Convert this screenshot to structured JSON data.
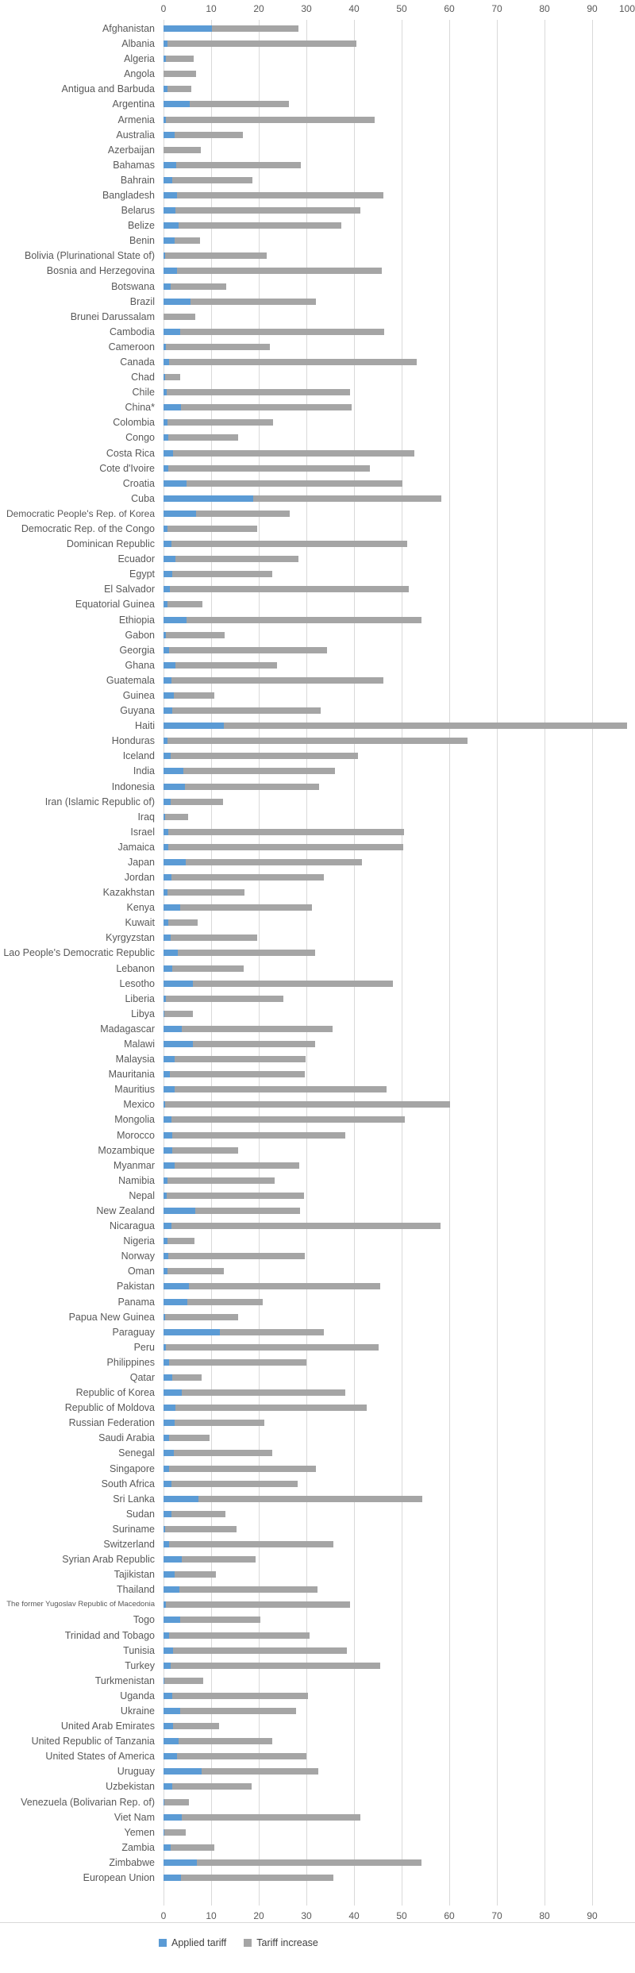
{
  "chart_data": {
    "type": "bar",
    "orientation": "horizontal",
    "stacked": true,
    "title": "",
    "xlabel": "",
    "ylabel": "",
    "xlim": [
      0,
      100
    ],
    "x_ticks_top": [
      "0",
      "10",
      "20",
      "30",
      "40",
      "50",
      "60",
      "70",
      "80",
      "90",
      "100"
    ],
    "x_ticks_bottom": [
      "0",
      "10",
      "20",
      "30",
      "40",
      "50",
      "60",
      "70",
      "80",
      "90"
    ],
    "grid": "vertical",
    "legend_position": "bottom-left",
    "colors": {
      "applied": "#5b9bd5",
      "increase": "#a5a5a5",
      "grid": "#d9d9d9"
    },
    "categories": [
      "Afghanistan",
      "Albania",
      "Algeria",
      "Angola",
      "Antigua and Barbuda",
      "Argentina",
      "Armenia",
      "Australia",
      "Azerbaijan",
      "Bahamas",
      "Bahrain",
      "Bangladesh",
      "Belarus",
      "Belize",
      "Benin",
      "Bolivia (Plurinational State of)",
      "Bosnia and Herzegovina",
      "Botswana",
      "Brazil",
      "Brunei Darussalam",
      "Cambodia",
      "Cameroon",
      "Canada",
      "Chad",
      "Chile",
      "China*",
      "Colombia",
      "Congo",
      "Costa Rica",
      "Cote d'Ivoire",
      "Croatia",
      "Cuba",
      "Democratic People's Rep. of Korea",
      "Democratic Rep. of the Congo",
      "Dominican Republic",
      "Ecuador",
      "Egypt",
      "El Salvador",
      "Equatorial Guinea",
      "Ethiopia",
      "Gabon",
      "Georgia",
      "Ghana",
      "Guatemala",
      "Guinea",
      "Guyana",
      "Haiti",
      "Honduras",
      "Iceland",
      "India",
      "Indonesia",
      "Iran (Islamic Republic of)",
      "Iraq",
      "Israel",
      "Jamaica",
      "Japan",
      "Jordan",
      "Kazakhstan",
      "Kenya",
      "Kuwait",
      "Kyrgyzstan",
      "Lao People's Democratic Republic",
      "Lebanon",
      "Lesotho",
      "Liberia",
      "Libya",
      "Madagascar",
      "Malawi",
      "Malaysia",
      "Mauritania",
      "Mauritius",
      "Mexico",
      "Mongolia",
      "Morocco",
      "Mozambique",
      "Myanmar",
      "Namibia",
      "Nepal",
      "New Zealand",
      "Nicaragua",
      "Nigeria",
      "Norway",
      "Oman",
      "Pakistan",
      "Panama",
      "Papua New Guinea",
      "Paraguay",
      "Peru",
      "Philippines",
      "Qatar",
      "Republic of Korea",
      "Republic of Moldova",
      "Russian Federation",
      "Saudi Arabia",
      "Senegal",
      "Singapore",
      "South Africa",
      "Sri Lanka",
      "Sudan",
      "Suriname",
      "Switzerland",
      "Syrian Arab Republic",
      "Tajikistan",
      "Thailand",
      "The former Yugoslav Republic of Macedonia",
      "Togo",
      "Trinidad and Tobago",
      "Tunisia",
      "Turkey",
      "Turkmenistan",
      "Uganda",
      "Ukraine",
      "United Arab Emirates",
      "United Republic of Tanzania",
      "United States of America",
      "Uruguay",
      "Uzbekistan",
      "Venezuela (Bolivarian Rep. of)",
      "Viet Nam",
      "Yemen",
      "Zambia",
      "Zimbabwe",
      "European Union"
    ],
    "series": [
      {
        "name": "Applied tariff",
        "values": [
          10.1,
          0.8,
          0.5,
          0,
          0.8,
          5.5,
          0.5,
          2.4,
          0,
          2.6,
          1.8,
          2.9,
          2.5,
          3.1,
          2.3,
          0.3,
          2.8,
          1.5,
          5.6,
          0,
          3.5,
          0.5,
          1.2,
          0.3,
          0.7,
          3.6,
          0.9,
          1.0,
          2.0,
          1.0,
          4.9,
          18.9,
          6.8,
          0.9,
          1.7,
          2.5,
          1.9,
          1.4,
          0.9,
          4.8,
          0.5,
          1.2,
          2.5,
          1.7,
          2.2,
          1.9,
          12.7,
          0.9,
          1.5,
          4.1,
          4.5,
          1.5,
          0.4,
          1.0,
          1.0,
          4.6,
          1.7,
          0.9,
          3.5,
          1.0,
          1.5,
          3.0,
          1.9,
          6.2,
          0.5,
          0.2,
          3.8,
          6.1,
          2.3,
          1.4,
          2.3,
          0.4,
          1.7,
          1.9,
          1.9,
          2.3,
          0.9,
          0.7,
          6.7,
          1.7,
          0.9,
          1.0,
          0.9,
          5.4,
          5.0,
          0.3,
          11.8,
          0.5,
          1.2,
          1.9,
          3.8,
          2.5,
          2.3,
          1.2,
          2.2,
          1.2,
          1.7,
          7.3,
          1.7,
          0.4,
          1.2,
          3.8,
          2.3,
          3.3,
          0.5,
          3.5,
          1.2,
          2.0,
          1.5,
          0.2,
          1.9,
          3.5,
          2.0,
          3.1,
          2.8,
          8.0,
          1.9,
          0.2,
          3.8,
          0.2,
          1.5,
          7.0,
          3.6
        ]
      },
      {
        "name": "Tariff increase",
        "values": [
          18.2,
          39.7,
          5.8,
          6.9,
          5.0,
          20.9,
          43.9,
          14.2,
          7.9,
          26.2,
          16.8,
          43.3,
          38.8,
          34.3,
          5.3,
          21.3,
          43.0,
          11.7,
          26.4,
          6.7,
          42.8,
          21.9,
          51.9,
          3.2,
          38.5,
          35.9,
          22.1,
          14.6,
          50.7,
          42.4,
          45.3,
          39.4,
          19.7,
          18.7,
          49.5,
          25.8,
          21.0,
          50.1,
          7.3,
          49.4,
          12.3,
          33.1,
          21.3,
          44.4,
          8.5,
          31.1,
          84.7,
          62.9,
          39.3,
          31.9,
          28.2,
          11.0,
          4.8,
          49.5,
          49.3,
          37.1,
          32.0,
          16.1,
          27.6,
          6.2,
          18.1,
          28.8,
          15.0,
          42.0,
          24.7,
          5.9,
          31.7,
          25.8,
          27.5,
          28.2,
          44.5,
          59.8,
          49.0,
          36.3,
          13.7,
          26.2,
          22.4,
          28.8,
          21.9,
          56.4,
          5.6,
          28.6,
          11.8,
          40.1,
          15.8,
          15.3,
          21.9,
          44.7,
          28.8,
          6.1,
          34.4,
          40.2,
          18.8,
          8.4,
          20.7,
          30.8,
          26.4,
          47.1,
          11.3,
          15.0,
          34.4,
          15.5,
          8.7,
          29.1,
          38.7,
          16.8,
          29.4,
          36.5,
          44.0,
          8.1,
          28.4,
          24.4,
          9.7,
          19.8,
          27.2,
          24.5,
          16.6,
          5.2,
          37.5,
          4.4,
          9.2,
          47.2,
          32.0
        ]
      }
    ]
  },
  "legend": {
    "applied_label": "Applied tariff",
    "increase_label": "Tariff increase"
  }
}
